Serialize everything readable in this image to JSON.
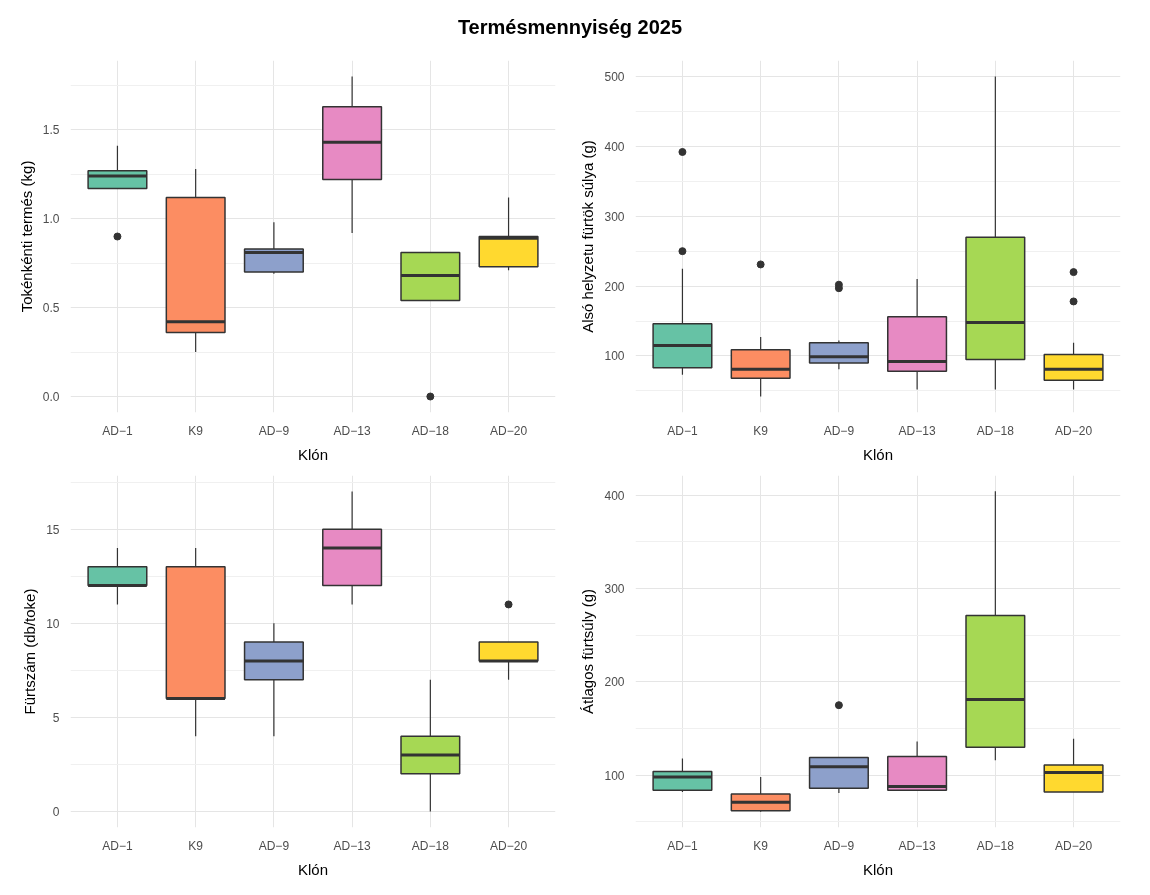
{
  "chart_data": [
    {
      "type": "box",
      "title": "Termésmennyiség 2025",
      "xlabel": "Klón",
      "ylabel": "Tokénkénti termés (kg)",
      "categories": [
        "AD−1",
        "K9",
        "AD−9",
        "AD−13",
        "AD−18",
        "AD−20"
      ],
      "colors": [
        "#66c2a5",
        "#fc8d62",
        "#8da0cb",
        "#e78ac3",
        "#a6d854",
        "#ffd92f"
      ],
      "ylim": [
        -0.09,
        1.89
      ],
      "yticks": [
        {
          "value": 0,
          "label": "0.0"
        },
        0.5,
        {
          "value": 1,
          "label": "1.0"
        },
        1.5
      ],
      "grid": true,
      "boxes": [
        {
          "low": 1.17,
          "q1": 1.17,
          "median": 1.24,
          "q3": 1.27,
          "high": 1.41,
          "outliers": [
            0.9
          ]
        },
        {
          "low": 0.25,
          "q1": 0.36,
          "median": 0.42,
          "q3": 1.12,
          "high": 1.28
        },
        {
          "low": 0.69,
          "q1": 0.7,
          "median": 0.81,
          "q3": 0.83,
          "high": 0.98
        },
        {
          "low": 0.92,
          "q1": 1.22,
          "median": 1.43,
          "q3": 1.63,
          "high": 1.8
        },
        {
          "low": 0.54,
          "q1": 0.54,
          "median": 0.68,
          "q3": 0.81,
          "high": 0.81,
          "outliers": [
            0.0
          ]
        },
        {
          "low": 0.71,
          "q1": 0.73,
          "median": 0.89,
          "q3": 0.9,
          "high": 1.12
        }
      ]
    },
    {
      "type": "box",
      "xlabel": "Klón",
      "ylabel": "Alsó helyzetu fürtök súlya (g)",
      "categories": [
        "AD−1",
        "K9",
        "AD−9",
        "AD−13",
        "AD−18",
        "AD−20"
      ],
      "colors": [
        "#66c2a5",
        "#fc8d62",
        "#8da0cb",
        "#e78ac3",
        "#a6d854",
        "#ffd92f"
      ],
      "ylim": [
        19,
        523
      ],
      "yticks": [
        100,
        200,
        300,
        400,
        500
      ],
      "grid": true,
      "boxes": [
        {
          "low": 73,
          "q1": 83,
          "median": 115,
          "q3": 146,
          "high": 225,
          "outliers": [
            392,
            250
          ]
        },
        {
          "low": 42,
          "q1": 68,
          "median": 81,
          "q3": 109,
          "high": 127,
          "outliers": [
            231
          ]
        },
        {
          "low": 81,
          "q1": 90,
          "median": 99,
          "q3": 119,
          "high": 122,
          "outliers": [
            202,
            197
          ]
        },
        {
          "low": 52,
          "q1": 78,
          "median": 92,
          "q3": 156,
          "high": 210
        },
        {
          "low": 52,
          "q1": 95,
          "median": 148,
          "q3": 270,
          "high": 500
        },
        {
          "low": 52,
          "q1": 65,
          "median": 81,
          "q3": 102,
          "high": 119,
          "outliers": [
            220,
            178
          ]
        }
      ]
    },
    {
      "type": "box",
      "xlabel": "Klón",
      "ylabel": "Fürtszám (db/toke)",
      "categories": [
        "AD−1",
        "K9",
        "AD−9",
        "AD−13",
        "AD−18",
        "AD−20"
      ],
      "colors": [
        "#66c2a5",
        "#fc8d62",
        "#8da0cb",
        "#e78ac3",
        "#a6d854",
        "#ffd92f"
      ],
      "ylim": [
        -0.85,
        17.85
      ],
      "yticks": [
        0,
        5,
        10,
        15
      ],
      "grid": true,
      "boxes": [
        {
          "low": 11,
          "q1": 12,
          "median": 12,
          "q3": 13,
          "high": 14
        },
        {
          "low": 4,
          "q1": 6,
          "median": 6,
          "q3": 13,
          "high": 14
        },
        {
          "low": 4,
          "q1": 7,
          "median": 8,
          "q3": 9,
          "high": 10
        },
        {
          "low": 11,
          "q1": 12,
          "median": 14,
          "q3": 15,
          "high": 17
        },
        {
          "low": 0,
          "q1": 2,
          "median": 3,
          "q3": 4,
          "high": 7
        },
        {
          "low": 7,
          "q1": 8,
          "median": 8,
          "q3": 9,
          "high": 9,
          "outliers": [
            11
          ]
        }
      ]
    },
    {
      "type": "box",
      "xlabel": "Klón",
      "ylabel": "Átlagos fürtsúly (g)",
      "categories": [
        "AD−1",
        "K9",
        "AD−9",
        "AD−13",
        "AD−18",
        "AD−20"
      ],
      "colors": [
        "#66c2a5",
        "#fc8d62",
        "#8da0cb",
        "#e78ac3",
        "#a6d854",
        "#ffd92f"
      ],
      "ylim": [
        44,
        421
      ],
      "yticks": [
        100,
        200,
        300,
        400
      ],
      "grid": true,
      "boxes": [
        {
          "low": 82,
          "q1": 84,
          "median": 98,
          "q3": 104,
          "high": 118
        },
        {
          "low": 61,
          "q1": 62,
          "median": 71,
          "q3": 80,
          "high": 98
        },
        {
          "low": 81,
          "q1": 86,
          "median": 109,
          "q3": 119,
          "high": 119,
          "outliers": [
            175
          ]
        },
        {
          "low": 84,
          "q1": 84,
          "median": 88,
          "q3": 120,
          "high": 136
        },
        {
          "low": 116,
          "q1": 130,
          "median": 181,
          "q3": 271,
          "high": 404
        },
        {
          "low": 82,
          "q1": 82,
          "median": 103,
          "q3": 111,
          "high": 139
        }
      ]
    }
  ]
}
